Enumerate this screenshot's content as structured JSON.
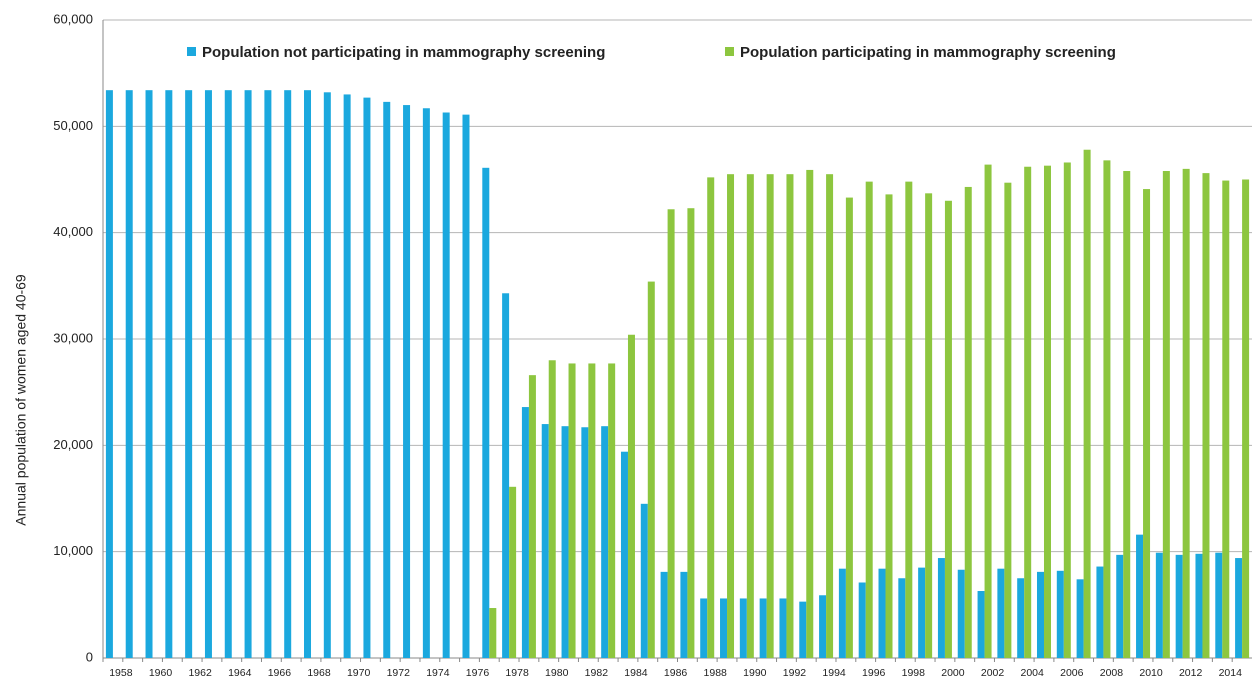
{
  "chart_data": {
    "type": "bar",
    "y_label": "Annual population of women aged 40-69",
    "categories": [
      "1958",
      null,
      "1960",
      null,
      "1962",
      null,
      "1964",
      null,
      "1966",
      null,
      "1968",
      null,
      "1970",
      null,
      "1972",
      null,
      "1974",
      null,
      "1976",
      null,
      "1978",
      null,
      "1980",
      null,
      "1982",
      null,
      "1984",
      null,
      "1986",
      null,
      "1988",
      null,
      "1990",
      null,
      "1992",
      null,
      "1994",
      null,
      "1996",
      null,
      "1998",
      null,
      "2000",
      null,
      "2002",
      null,
      "2004",
      null,
      "2006",
      null,
      "2008",
      null,
      "2010",
      null,
      "2012",
      null,
      "2014",
      null
    ],
    "series": [
      {
        "name": "Population not participating in mammography screening",
        "color": "#1ba8de",
        "values": [
          53400,
          53400,
          53400,
          53400,
          53400,
          53400,
          53400,
          53400,
          53400,
          53400,
          53400,
          53200,
          53000,
          52700,
          52300,
          52000,
          51700,
          51300,
          51100,
          46100,
          34300,
          23600,
          22000,
          21800,
          21700,
          21800,
          19400,
          14500,
          8100,
          8100,
          5600,
          5600,
          5600,
          5600,
          5600,
          5300,
          5900,
          8400,
          7100,
          8400,
          7500,
          8500,
          9400,
          8300,
          6300,
          8400,
          7500,
          8100,
          8200,
          7400,
          8600,
          9700,
          11600,
          9900,
          9700,
          9800,
          9900,
          9400
        ]
      },
      {
        "name": "Population participating in mammography screening",
        "color": "#8dc63f",
        "values": [
          0,
          0,
          0,
          0,
          0,
          0,
          0,
          0,
          0,
          0,
          0,
          0,
          0,
          0,
          0,
          0,
          0,
          0,
          0,
          4700,
          16100,
          26600,
          28000,
          27700,
          27700,
          27700,
          30400,
          35400,
          42200,
          42300,
          45200,
          45500,
          45500,
          45500,
          45500,
          45900,
          45500,
          43300,
          44800,
          43600,
          44800,
          43700,
          43000,
          44300,
          46400,
          44700,
          46200,
          46300,
          46600,
          47800,
          46800,
          45800,
          44100,
          45800,
          46000,
          45600,
          44900,
          45000
        ]
      }
    ],
    "ylim": [
      0,
      60000
    ],
    "yticks": [
      0,
      {
        "value": 10000,
        "label": "10,000"
      },
      {
        "value": 20000,
        "label": "20,000"
      },
      {
        "value": 30000,
        "label": "30,000"
      },
      {
        "value": 40000,
        "label": "40,000"
      },
      {
        "value": 50000,
        "label": "50,000"
      },
      {
        "value": 60000,
        "label": "60,000"
      }
    ],
    "grid": true
  }
}
